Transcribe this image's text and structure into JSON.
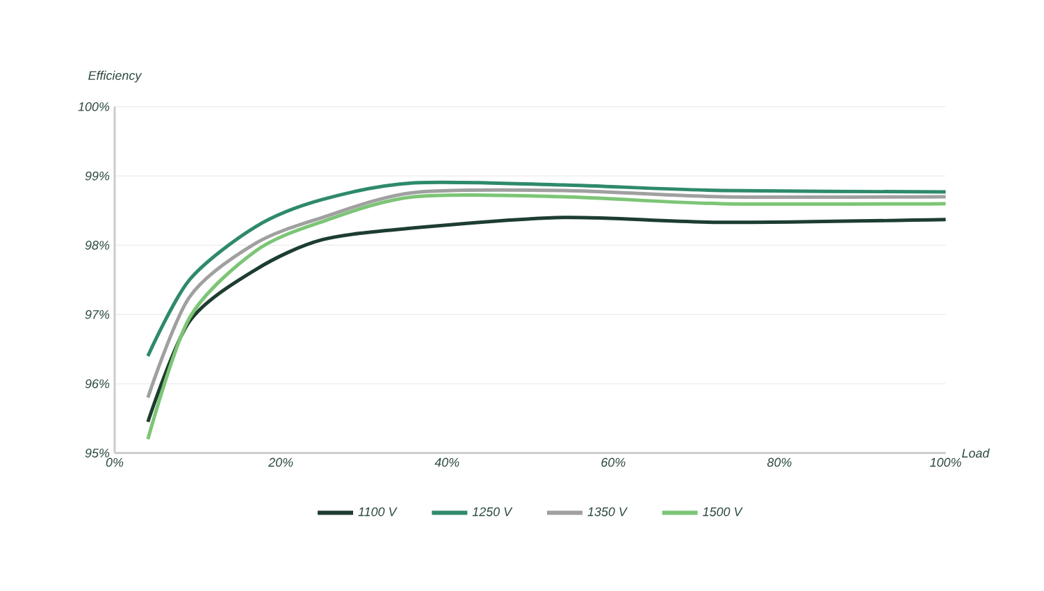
{
  "chart_data": {
    "type": "line",
    "xlabel": "Load",
    "ylabel": "Efficiency",
    "x": [
      4,
      9,
      17,
      25,
      36,
      54,
      73,
      100
    ],
    "series": [
      {
        "name": "1100 V",
        "color": "#1d3d30",
        "values": [
          95.45,
          96.9,
          97.65,
          98.08,
          98.25,
          98.4,
          98.33,
          98.37
        ]
      },
      {
        "name": "1250 V",
        "color": "#2e8a6a",
        "values": [
          96.4,
          97.5,
          98.27,
          98.66,
          98.9,
          98.87,
          98.79,
          98.77
        ]
      },
      {
        "name": "1350 V",
        "color": "#a0a0a0",
        "values": [
          95.8,
          97.25,
          98.03,
          98.4,
          98.76,
          98.79,
          98.7,
          98.7
        ]
      },
      {
        "name": "1500 V",
        "color": "#7cc576",
        "values": [
          95.2,
          96.95,
          97.92,
          98.34,
          98.7,
          98.7,
          98.6,
          98.6
        ]
      }
    ],
    "xlim": [
      0,
      100
    ],
    "ylim": [
      95,
      100
    ],
    "xticks": [
      {
        "value": 0,
        "label": "0%"
      },
      {
        "value": 20,
        "label": "20%"
      },
      {
        "value": 40,
        "label": "40%"
      },
      {
        "value": 60,
        "label": "60%"
      },
      {
        "value": 80,
        "label": "80%"
      },
      {
        "value": 100,
        "label": "100%"
      }
    ],
    "yticks": [
      {
        "value": 95,
        "label": "95%"
      },
      {
        "value": 96,
        "label": "96%"
      },
      {
        "value": 97,
        "label": "97%"
      },
      {
        "value": 98,
        "label": "98%"
      },
      {
        "value": 99,
        "label": "99%"
      },
      {
        "value": 100,
        "label": "100%"
      }
    ],
    "grid": "y",
    "legend": "bottom",
    "marker": "none",
    "line_style": "solid"
  }
}
